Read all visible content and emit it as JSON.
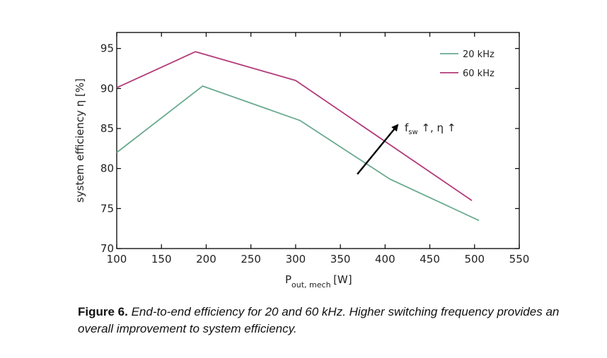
{
  "chart_data": {
    "type": "line",
    "xlabel_main": "P",
    "xlabel_sub": "out, mech",
    "xlabel_unit": "[W]",
    "ylabel": "system efficiency η [%]",
    "xlim": [
      100,
      550
    ],
    "ylim": [
      70,
      97
    ],
    "xticks": [
      100,
      150,
      200,
      250,
      300,
      350,
      400,
      450,
      500,
      550
    ],
    "yticks": [
      70,
      75,
      80,
      85,
      90,
      95
    ],
    "grid": false,
    "legend_position": "top-right",
    "series": [
      {
        "name": "20 kHz",
        "color": "#6aaa8f",
        "x": [
          100,
          196,
          305,
          405,
          505
        ],
        "y": [
          82,
          90.3,
          86,
          78.7,
          73.5
        ]
      },
      {
        "name": "60 kHz",
        "color": "#b23a7a",
        "x": [
          100,
          188,
          300,
          497
        ],
        "y": [
          90.1,
          94.6,
          91,
          76
        ]
      }
    ],
    "annotation": {
      "text_f": "f",
      "text_sub": "sw",
      "text_rest": " ↑, η ↑",
      "arrow_from": [
        369,
        79.3
      ],
      "arrow_to": [
        413,
        85.3
      ]
    }
  },
  "caption": {
    "label": "Figure 6.",
    "text": " End-to-end efficiency for 20 and 60 kHz. Higher switching frequency provides an overall improvement to system efficiency."
  }
}
